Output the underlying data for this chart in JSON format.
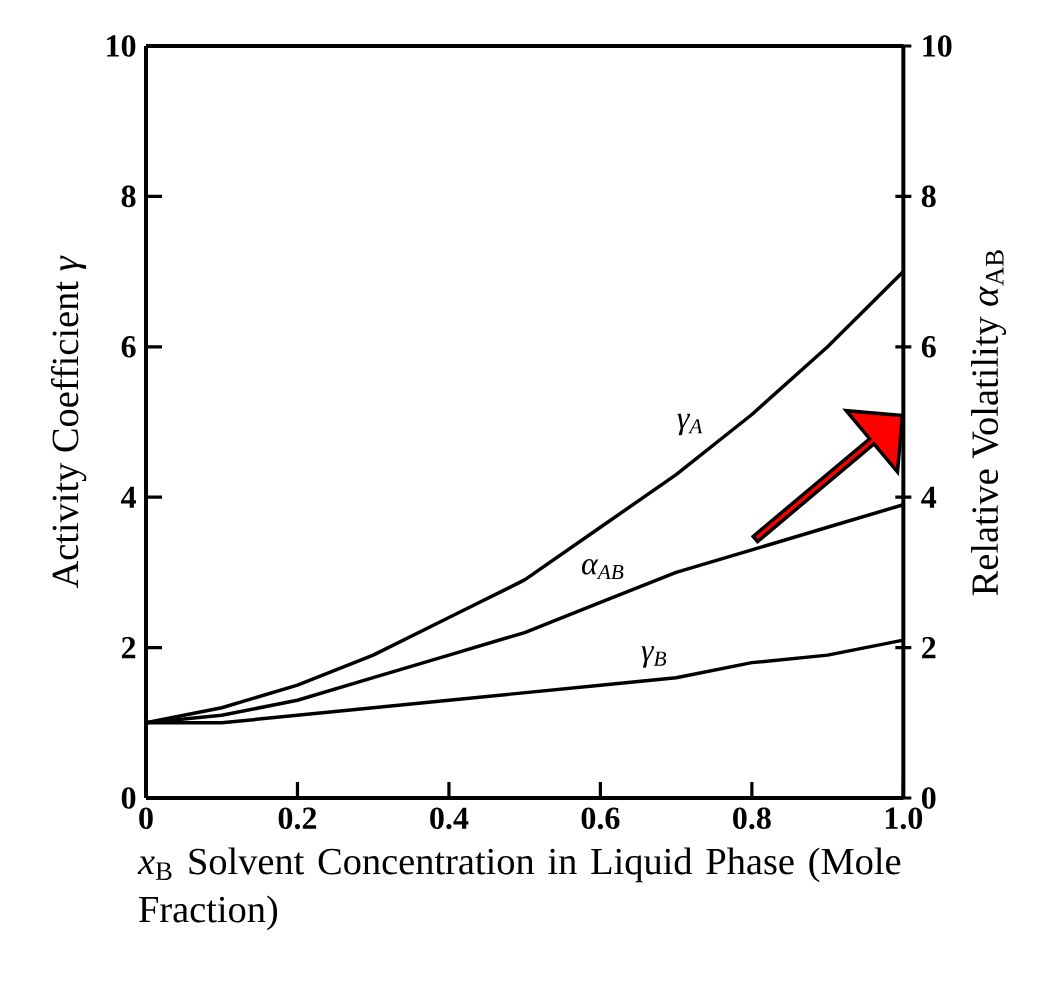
{
  "chart_data": {
    "type": "line",
    "xlabel": "*x*$_{B}$ Solvent Concentration in Liquid Phase (Mole Fraction)",
    "ylabel": "Activity Coefficient *γ*",
    "y2label": "Relative Volatility *α*$_{AB}$",
    "x": [
      0,
      0.1,
      0.2,
      0.3,
      0.4,
      0.5,
      0.6,
      0.7,
      0.8,
      0.9,
      1.0
    ],
    "xlim": [
      0,
      1
    ],
    "xticks": [
      0,
      0.2,
      0.4,
      0.6,
      0.8,
      {
        "value": 1,
        "label": "1.0"
      }
    ],
    "ylim": [
      0,
      10
    ],
    "yticks": [
      0,
      2,
      4,
      6,
      8,
      10
    ],
    "y2lim": [
      0,
      10
    ],
    "y2ticks": [
      0,
      2,
      4,
      6,
      8,
      10
    ],
    "marker": "none",
    "line_style": "solid",
    "series": [
      {
        "name": "γ$_{A}$",
        "color": "#000000",
        "values": [
          1,
          1.2,
          1.5,
          1.9,
          2.4,
          2.9,
          3.6,
          4.3,
          5.1,
          6.0,
          7.0
        ]
      },
      {
        "name": "α$_{AB}$",
        "color": "#000000",
        "axis": "y2",
        "values": [
          1,
          1.1,
          1.3,
          1.6,
          1.9,
          2.2,
          2.6,
          3.0,
          3.3,
          3.6,
          3.9
        ]
      },
      {
        "name": "γ$_{B}$",
        "color": "#000000",
        "values": [
          1,
          1.0,
          1.1,
          1.2,
          1.3,
          1.4,
          1.5,
          1.6,
          1.8,
          1.9,
          2.1
        ]
      }
    ]
  }
}
